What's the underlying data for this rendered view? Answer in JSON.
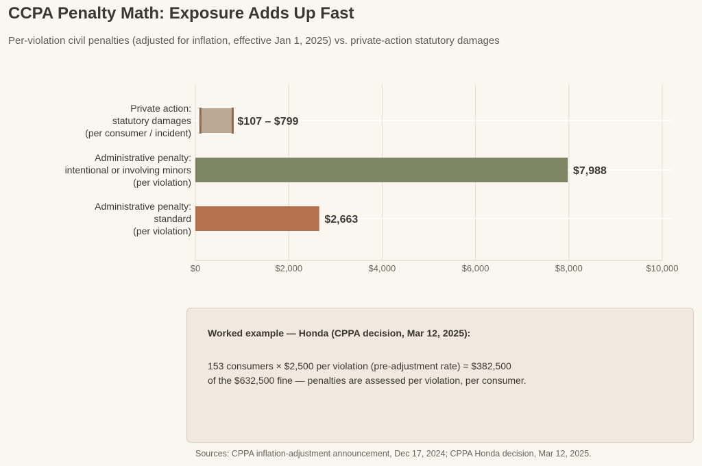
{
  "header": {
    "title": "CCPA Penalty Math: Exposure Adds Up Fast",
    "subtitle": "Per-violation civil penalties (adjusted for inflation, effective Jan 1, 2025) vs. private-action statutory damages"
  },
  "chart_data": {
    "type": "bar",
    "orientation": "horizontal",
    "categories": [
      [
        "Private action:",
        "statutory damages",
        "(per consumer / incident)"
      ],
      [
        "Administrative penalty:",
        "intentional or involving minors",
        "(per violation)"
      ],
      [
        "Administrative penalty:",
        "standard",
        "(per violation)"
      ]
    ],
    "bars": [
      {
        "type": "range",
        "low": 107,
        "high": 799,
        "label": "$107 – $799",
        "color": "#bba995",
        "cap_color": "#8a6a4c"
      },
      {
        "type": "value",
        "value": 7988,
        "label": "$7,988",
        "color": "#7e8664"
      },
      {
        "type": "value",
        "value": 2663,
        "label": "$2,663",
        "color": "#b5704d"
      }
    ],
    "xlim": [
      0,
      10000
    ],
    "xticks": [
      0,
      2000,
      4000,
      6000,
      8000,
      10000
    ],
    "xtick_labels": [
      "$0",
      "$2,000",
      "$4,000",
      "$6,000",
      "$8,000",
      "$10,000"
    ],
    "grid": true
  },
  "example": {
    "heading": "Worked example — Honda (CPPA decision, Mar 12, 2025):",
    "line1": "153 consumers  ×  $2,500 per violation (pre-adjustment rate)  =  $382,500",
    "line2": "of the $632,500 fine — penalties are assessed per violation, per consumer."
  },
  "footer": {
    "sources": "Sources: CPPA inflation-adjustment announcement, Dec 17, 2024; CPPA Honda decision, Mar 12, 2025."
  }
}
